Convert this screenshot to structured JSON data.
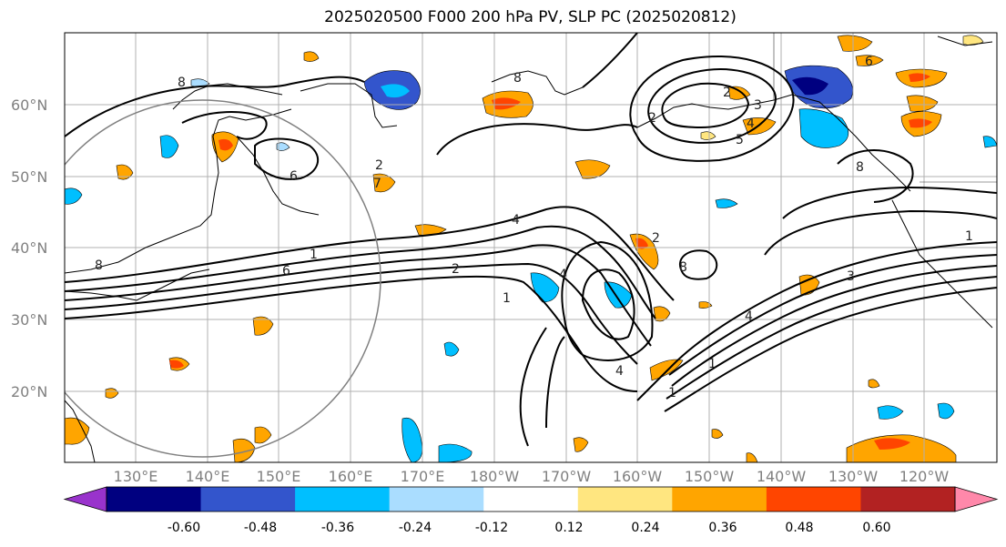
{
  "title": "2025020500 F000 200 hPa PV, SLP PC (2025020812)",
  "lat_labels": [
    "60°N",
    "50°N",
    "40°N",
    "30°N",
    "20°N"
  ],
  "lon_labels": [
    "130°E",
    "140°E",
    "150°E",
    "160°E",
    "170°E",
    "180°W",
    "170°W",
    "160°W",
    "150°W",
    "140°W",
    "130°W",
    "120°W"
  ],
  "colorbar": {
    "tick_labels": [
      "-0.60",
      "-0.48",
      "-0.36",
      "-0.24",
      "-0.12",
      "0.12",
      "0.24",
      "0.36",
      "0.48",
      "0.60"
    ],
    "colors": [
      "#9933cc",
      "#000080",
      "#3355cc",
      "#00bfff",
      "#aaddff",
      "#ffffff",
      "#ffe680",
      "#ffa500",
      "#ff4500",
      "#b22222",
      "#ff88aa"
    ]
  },
  "contour_labels": [
    "8",
    "6",
    "8",
    "2",
    "2",
    "5",
    "4",
    "3",
    "1",
    "2",
    "1",
    "6",
    "1",
    "2",
    "4",
    "1",
    "4",
    "1",
    "3",
    "6",
    "8",
    "8",
    "4",
    "8",
    "2",
    "7",
    "4"
  ]
}
